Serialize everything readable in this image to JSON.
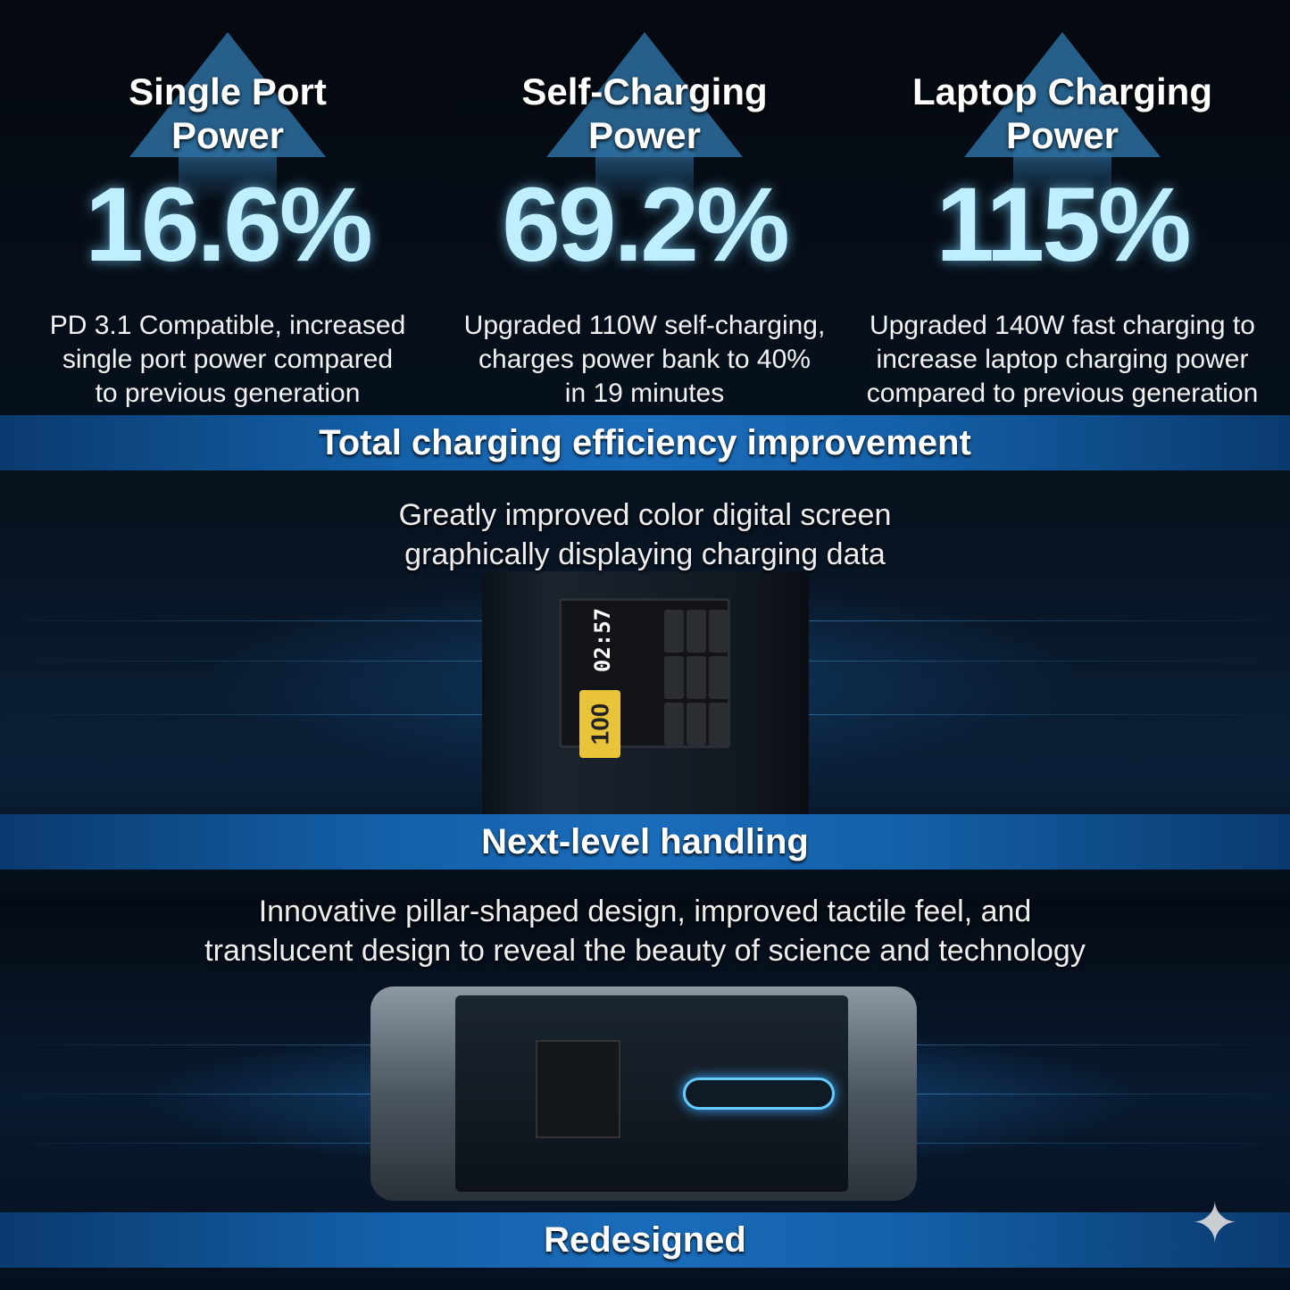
{
  "stats": [
    {
      "title_line1": "Single Port",
      "title_line2": "Power",
      "value": "16.6%",
      "desc_lines": [
        "PD 3.1 Compatible, increased",
        "single port power compared",
        "to previous generation"
      ]
    },
    {
      "title_line1": "Self-Charging",
      "title_line2": "Power",
      "value": "69.2%",
      "desc_lines": [
        "Upgraded 110W self-charging,",
        "charges power bank to 40%",
        "in 19 minutes"
      ]
    },
    {
      "title_line1": "Laptop Charging",
      "title_line2": "Power",
      "value": "115%",
      "desc_lines": [
        "Upgraded 140W fast charging to",
        "increase laptop charging power",
        "compared to previous generation"
      ]
    }
  ],
  "bands": {
    "efficiency": "Total charging efficiency improvement",
    "handling": "Next-level handling",
    "redesigned": "Redesigned"
  },
  "screen_section": {
    "lines": [
      "Greatly improved color digital screen",
      "graphically displaying charging data"
    ]
  },
  "handling_section": {
    "lines": [
      "Innovative pillar-shaped design, improved tactile feel, and",
      "translucent design to reveal the beauty of science and technology"
    ]
  },
  "device_screen": {
    "time": "02:57",
    "battery": "100"
  },
  "colors": {
    "accent": "#1a6cbb",
    "percent": "#bfeeff",
    "arrow": "#2d6fa0"
  },
  "icons": {
    "corner": "sparkle-icon"
  }
}
